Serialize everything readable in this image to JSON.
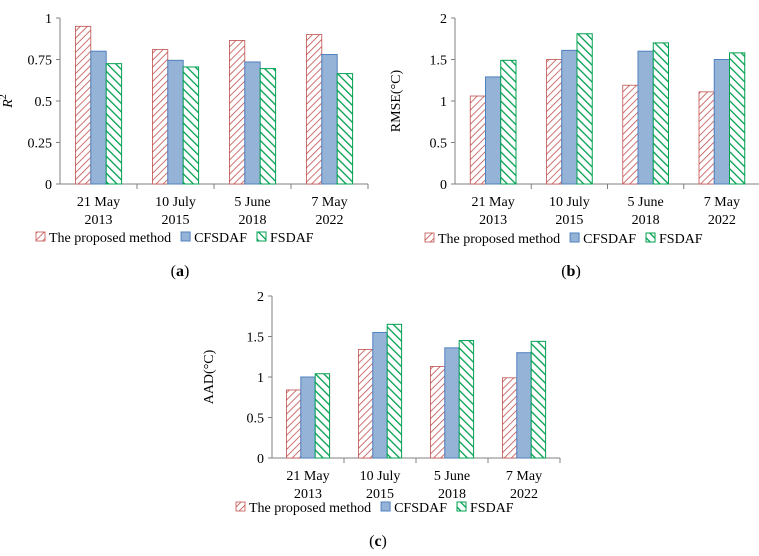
{
  "figure": {
    "legend": [
      "The proposed method",
      "CFSDAF",
      "FSDAF"
    ],
    "panel_labels": [
      "(a)",
      "(b)",
      "(c)"
    ]
  },
  "colors": {
    "proposed": "#c0504d",
    "cfsdaf_fill": "#95b3d7",
    "cfsdaf_stroke": "#4f81bd",
    "fsdaf": "#00a050",
    "axis": "#808080"
  },
  "chart_data": [
    {
      "type": "bar",
      "panel": "(a)",
      "ylabel": "R²",
      "ylabel_main": "R",
      "ylabel_sup": "2",
      "ylim": [
        0,
        1
      ],
      "yticks": [
        "0",
        "0.25",
        "0.5",
        "0.75",
        "1"
      ],
      "categories": [
        [
          "21 May",
          "2013"
        ],
        [
          "10 July",
          "2015"
        ],
        [
          "5 June",
          "2018"
        ],
        [
          "7 May",
          "2022"
        ]
      ],
      "series": [
        {
          "name": "The proposed method",
          "values": [
            0.95,
            0.81,
            0.865,
            0.9
          ]
        },
        {
          "name": "CFSDAF",
          "values": [
            0.8,
            0.745,
            0.735,
            0.78
          ]
        },
        {
          "name": "FSDAF",
          "values": [
            0.725,
            0.705,
            0.695,
            0.665
          ]
        }
      ],
      "legend_position": "bottom"
    },
    {
      "type": "bar",
      "panel": "(b)",
      "ylabel": "RMSE(°C)",
      "ylim": [
        0,
        2
      ],
      "yticks": [
        "0",
        "0.5",
        "1",
        "1.5",
        "2"
      ],
      "categories": [
        [
          "21 May",
          "2013"
        ],
        [
          "10 July",
          "2015"
        ],
        [
          "5 June",
          "2018"
        ],
        [
          "7 May",
          "2022"
        ]
      ],
      "series": [
        {
          "name": "The proposed method",
          "values": [
            1.06,
            1.5,
            1.19,
            1.11
          ]
        },
        {
          "name": "CFSDAF",
          "values": [
            1.29,
            1.61,
            1.6,
            1.5
          ]
        },
        {
          "name": "FSDAF",
          "values": [
            1.49,
            1.81,
            1.7,
            1.58
          ]
        }
      ],
      "legend_position": "bottom"
    },
    {
      "type": "bar",
      "panel": "(c)",
      "ylabel": "AAD(°C)",
      "ylim": [
        0,
        2
      ],
      "yticks": [
        "0",
        "0.5",
        "1",
        "1.5",
        "2"
      ],
      "categories": [
        [
          "21 May",
          "2013"
        ],
        [
          "10 July",
          "2015"
        ],
        [
          "5 June",
          "2018"
        ],
        [
          "7 May",
          "2022"
        ]
      ],
      "series": [
        {
          "name": "The proposed method",
          "values": [
            0.84,
            1.34,
            1.13,
            0.99
          ]
        },
        {
          "name": "CFSDAF",
          "values": [
            1.0,
            1.55,
            1.36,
            1.3
          ]
        },
        {
          "name": "FSDAF",
          "values": [
            1.04,
            1.65,
            1.45,
            1.44
          ]
        }
      ],
      "legend_position": "bottom"
    }
  ]
}
